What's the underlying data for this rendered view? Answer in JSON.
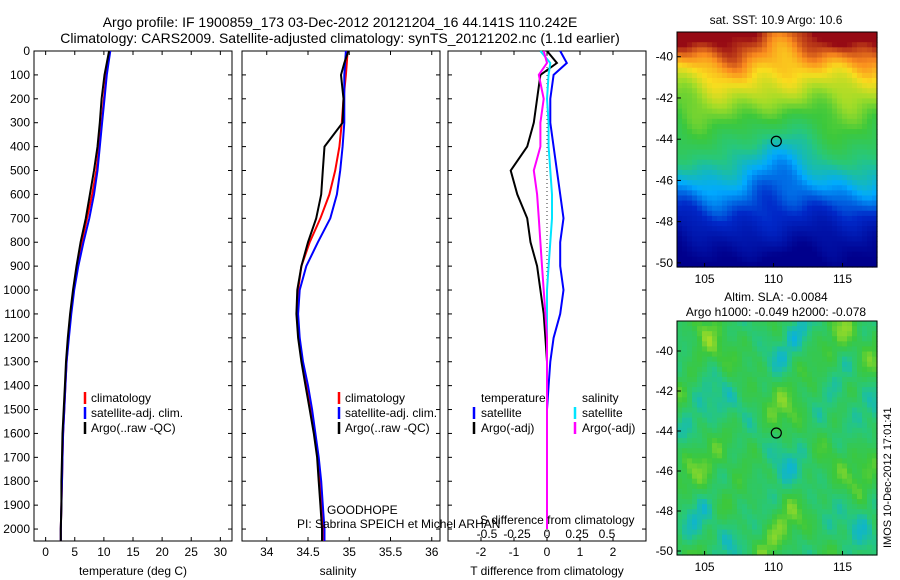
{
  "header": {
    "title_line1": "Argo profile: IF 1900859_173 03-Dec-2012 20121204_16 44.141S 110.242E",
    "title_line2": "Climatology: CARS2009. Satellite-adjusted climatology: synTS_20121202.nc (1.1d earlier)"
  },
  "side": {
    "sst_title": "sat. SST: 10.9 Argo: 10.6",
    "sla_title1": "Altim. SLA: -0.0084",
    "sla_title2": "Argo h1000: -0.049 h2000: -0.078",
    "imos_stamp": "IMOS 10-Dec-2012 17:01:41"
  },
  "annotations": {
    "project": "GOODHOPE",
    "pi": "PI: Sabrina SPEICH et Michel ARHAN",
    "s_diff_label": "S difference from climatology",
    "s_diff_ticks": [
      "-0.5",
      "-0.25",
      "0",
      "0.25",
      "0.5"
    ]
  },
  "colors": {
    "climatology": "#ff0000",
    "satellite": "#0000ff",
    "argo": "#000000",
    "satellite_salinity": "#00e5ff",
    "argo_salinity": "#ff00ff"
  },
  "chart_data": [
    {
      "type": "line",
      "xlabel": "temperature (deg C)",
      "ylabel": "",
      "xlim": [
        -2,
        32
      ],
      "ylim": [
        2050,
        0
      ],
      "xticks": [
        "0",
        "5",
        "10",
        "15",
        "20",
        "25",
        "30"
      ],
      "yticks": [
        "0",
        "100",
        "200",
        "300",
        "400",
        "500",
        "600",
        "700",
        "800",
        "900",
        "1000",
        "1100",
        "1200",
        "1300",
        "1400",
        "1500",
        "1600",
        "1700",
        "1800",
        "1900",
        "2000"
      ],
      "legend": [
        "climatology",
        "satellite-adj. clim.",
        "Argo(..raw -QC)"
      ],
      "depth": [
        0,
        50,
        100,
        200,
        300,
        400,
        500,
        600,
        700,
        800,
        900,
        1000,
        1100,
        1200,
        1300,
        1400,
        1500,
        1600,
        1700,
        1800,
        1900,
        2000,
        2050
      ],
      "series": [
        {
          "name": "climatology",
          "values": [
            11.0,
            10.7,
            10.4,
            10.0,
            9.6,
            9.2,
            8.7,
            8.0,
            7.1,
            6.2,
            5.4,
            4.8,
            4.3,
            3.9,
            3.6,
            3.4,
            3.2,
            3.0,
            2.9,
            2.8,
            2.7,
            2.6,
            2.6
          ]
        },
        {
          "name": "satellite-adj. clim.",
          "values": [
            11.1,
            10.8,
            10.5,
            10.1,
            9.7,
            9.3,
            8.9,
            8.3,
            7.5,
            6.5,
            5.6,
            4.9,
            4.4,
            4.0,
            3.6,
            3.4,
            3.2,
            3.0,
            2.9,
            2.8,
            2.7,
            2.6,
            2.6
          ]
        },
        {
          "name": "Argo(..raw -QC)",
          "values": [
            10.9,
            10.5,
            10.1,
            9.6,
            9.3,
            8.9,
            8.3,
            7.6,
            6.9,
            6.0,
            5.3,
            4.7,
            4.2,
            3.8,
            3.5,
            3.3,
            3.1,
            2.9,
            2.8,
            2.7,
            2.7,
            2.6,
            2.6
          ]
        }
      ]
    },
    {
      "type": "line",
      "xlabel": "salinity",
      "xlim": [
        33.7,
        36.1
      ],
      "ylim": [
        2050,
        0
      ],
      "xticks": [
        "34",
        "34.5",
        "35",
        "35.5",
        "36"
      ],
      "legend": [
        "climatology",
        "satellite-adj. clim.",
        "Argo(..raw -QC)"
      ],
      "depth": [
        0,
        50,
        100,
        200,
        300,
        400,
        500,
        600,
        700,
        800,
        900,
        1000,
        1100,
        1200,
        1300,
        1400,
        1500,
        1600,
        1700,
        1800,
        1900,
        2000,
        2050
      ],
      "series": [
        {
          "name": "climatology",
          "values": [
            34.98,
            34.97,
            34.96,
            34.93,
            34.91,
            34.88,
            34.83,
            34.76,
            34.65,
            34.52,
            34.42,
            34.38,
            34.37,
            34.39,
            34.43,
            34.48,
            34.53,
            34.58,
            34.62,
            34.64,
            34.66,
            34.68,
            34.68
          ]
        },
        {
          "name": "satellite-adj. clim.",
          "values": [
            34.96,
            34.95,
            34.94,
            34.94,
            34.94,
            34.92,
            34.89,
            34.85,
            34.77,
            34.62,
            34.48,
            34.4,
            34.38,
            34.4,
            34.44,
            34.5,
            34.55,
            34.59,
            34.63,
            34.66,
            34.68,
            34.7,
            34.7
          ]
        },
        {
          "name": "Argo(..raw -QC)",
          "values": [
            34.99,
            34.94,
            34.9,
            34.93,
            34.92,
            34.7,
            34.68,
            34.66,
            34.6,
            34.5,
            34.42,
            34.37,
            34.36,
            34.38,
            34.42,
            34.47,
            34.52,
            34.57,
            34.61,
            34.63,
            34.65,
            34.67,
            34.67
          ]
        }
      ]
    },
    {
      "type": "line",
      "xlabel": "T difference from climatology",
      "xlim": [
        -3,
        3
      ],
      "ylim": [
        2050,
        0
      ],
      "xticks": [
        "-2",
        "-1",
        "0",
        "1",
        "2"
      ],
      "legend_temperature": [
        "temperature",
        "satellite",
        "Argo(-adj)"
      ],
      "legend_salinity": [
        "salinity",
        "satellite",
        "Argo(-adj)"
      ],
      "depth": [
        0,
        50,
        100,
        200,
        300,
        400,
        500,
        600,
        700,
        800,
        900,
        1000,
        1100,
        1200,
        1300,
        1400,
        1500,
        1600,
        1700,
        1800,
        1900,
        2000
      ],
      "series": [
        {
          "name": "temperature satellite",
          "values": [
            0.4,
            0.6,
            0.2,
            0.1,
            0.1,
            0.2,
            0.3,
            0.4,
            0.5,
            0.4,
            0.4,
            0.5,
            0.4,
            0.2,
            0.1,
            0.05,
            0.0,
            0.0,
            0.0,
            0.0,
            0.0,
            0.0
          ]
        },
        {
          "name": "temperature Argo(-adj)",
          "values": [
            0.0,
            0.3,
            -0.2,
            -0.3,
            -0.4,
            -0.6,
            -1.1,
            -0.9,
            -0.6,
            -0.5,
            -0.3,
            -0.2,
            -0.1,
            -0.05,
            0.0,
            0.0,
            0.0,
            0.0,
            0.0,
            0.0,
            0.0,
            0.0
          ]
        },
        {
          "name": "salinity satellite",
          "values": [
            -0.2,
            0.1,
            0.05,
            0.0,
            0.05,
            0.05,
            0.1,
            0.15,
            0.15,
            0.1,
            0.05,
            0.0,
            0.0,
            0.0,
            0.0,
            0.0,
            0.0,
            0.0,
            0.0,
            0.0,
            0.0,
            0.0
          ]
        },
        {
          "name": "salinity Argo(-adj)",
          "values": [
            -0.1,
            0.0,
            -0.25,
            -0.1,
            -0.2,
            -0.2,
            -0.4,
            -0.3,
            -0.25,
            -0.2,
            -0.15,
            -0.1,
            -0.05,
            0.0,
            0.0,
            0.0,
            0.0,
            0.0,
            0.0,
            0.0,
            0.0,
            0.0
          ]
        }
      ]
    },
    {
      "type": "heatmap",
      "title": "sat. SST: 10.9 Argo: 10.6",
      "xlim": [
        103,
        117.5
      ],
      "ylim": [
        -50.2,
        -38.8
      ],
      "xticks": [
        "105",
        "110",
        "115"
      ],
      "yticks": [
        "-40",
        "-42",
        "-44",
        "-46",
        "-48",
        "-50"
      ],
      "marker": {
        "lon": 110.2,
        "lat": -44.1
      }
    },
    {
      "type": "heatmap",
      "title": "Altim. SLA: -0.0084",
      "xlim": [
        103,
        117.5
      ],
      "ylim": [
        -50.2,
        -38.5
      ],
      "xticks": [
        "105",
        "110",
        "115"
      ],
      "yticks": [
        "-40",
        "-42",
        "-44",
        "-46",
        "-48",
        "-50"
      ],
      "marker": {
        "lon": 110.2,
        "lat": -44.1
      }
    }
  ]
}
